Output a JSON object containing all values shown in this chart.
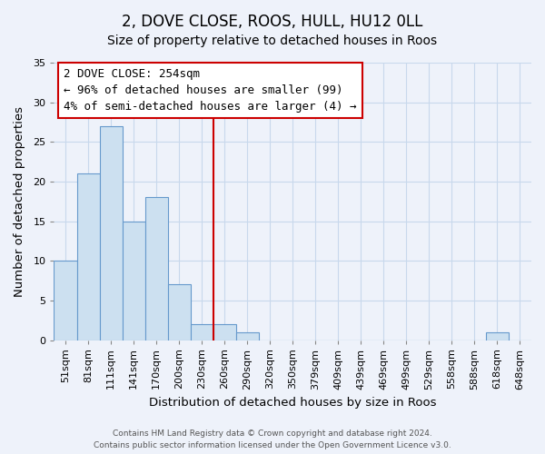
{
  "title": "2, DOVE CLOSE, ROOS, HULL, HU12 0LL",
  "subtitle": "Size of property relative to detached houses in Roos",
  "xlabel": "Distribution of detached houses by size in Roos",
  "ylabel": "Number of detached properties",
  "bar_labels": [
    "51sqm",
    "81sqm",
    "111sqm",
    "141sqm",
    "170sqm",
    "200sqm",
    "230sqm",
    "260sqm",
    "290sqm",
    "320sqm",
    "350sqm",
    "379sqm",
    "409sqm",
    "439sqm",
    "469sqm",
    "499sqm",
    "529sqm",
    "558sqm",
    "588sqm",
    "618sqm",
    "648sqm"
  ],
  "bar_values": [
    10,
    21,
    27,
    15,
    18,
    7,
    2,
    2,
    1,
    0,
    0,
    0,
    0,
    0,
    0,
    0,
    0,
    0,
    0,
    1,
    0
  ],
  "bar_color": "#cce0f0",
  "bar_edge_color": "#6699cc",
  "grid_color": "#c8d8ec",
  "background_color": "#eef2fa",
  "vline_x": 6.5,
  "vline_color": "#cc0000",
  "annotation_title": "2 DOVE CLOSE: 254sqm",
  "annotation_line1": "← 96% of detached houses are smaller (99)",
  "annotation_line2": "4% of semi-detached houses are larger (4) →",
  "annotation_box_color": "#ffffff",
  "annotation_border_color": "#cc0000",
  "ylim": [
    0,
    35
  ],
  "yticks": [
    0,
    5,
    10,
    15,
    20,
    25,
    30,
    35
  ],
  "footer_line1": "Contains HM Land Registry data © Crown copyright and database right 2024.",
  "footer_line2": "Contains public sector information licensed under the Open Government Licence v3.0.",
  "title_fontsize": 12,
  "subtitle_fontsize": 10,
  "axis_label_fontsize": 9.5,
  "tick_fontsize": 8,
  "annotation_fontsize": 9
}
